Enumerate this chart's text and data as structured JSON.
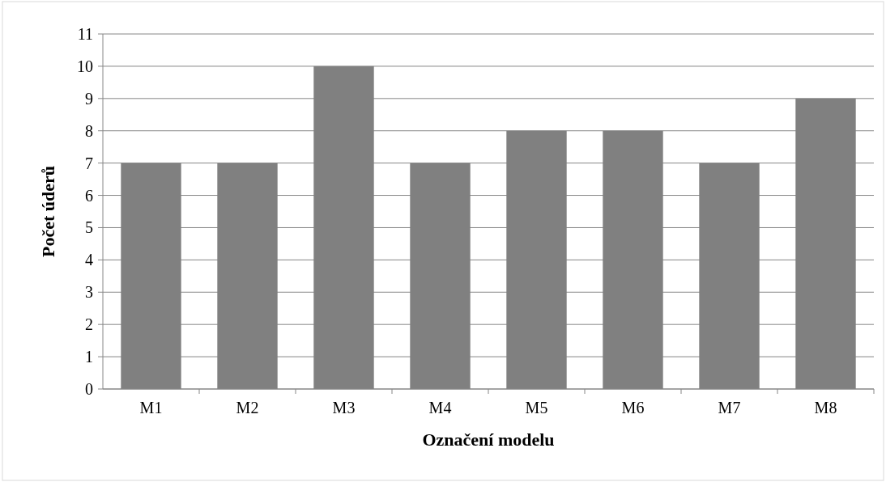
{
  "chart_data": {
    "type": "bar",
    "xlabel": "Označení modelu",
    "ylabel": "Počet úderů",
    "categories": [
      "M1",
      "M2",
      "M3",
      "M4",
      "M5",
      "M6",
      "M7",
      "M8"
    ],
    "values": [
      7,
      7,
      10,
      7,
      8,
      8,
      7,
      9
    ],
    "color": "#808080",
    "ylim": [
      0,
      11
    ],
    "yticks": [
      0,
      1,
      2,
      3,
      4,
      5,
      6,
      7,
      8,
      9,
      10,
      11
    ],
    "grid": "y"
  }
}
